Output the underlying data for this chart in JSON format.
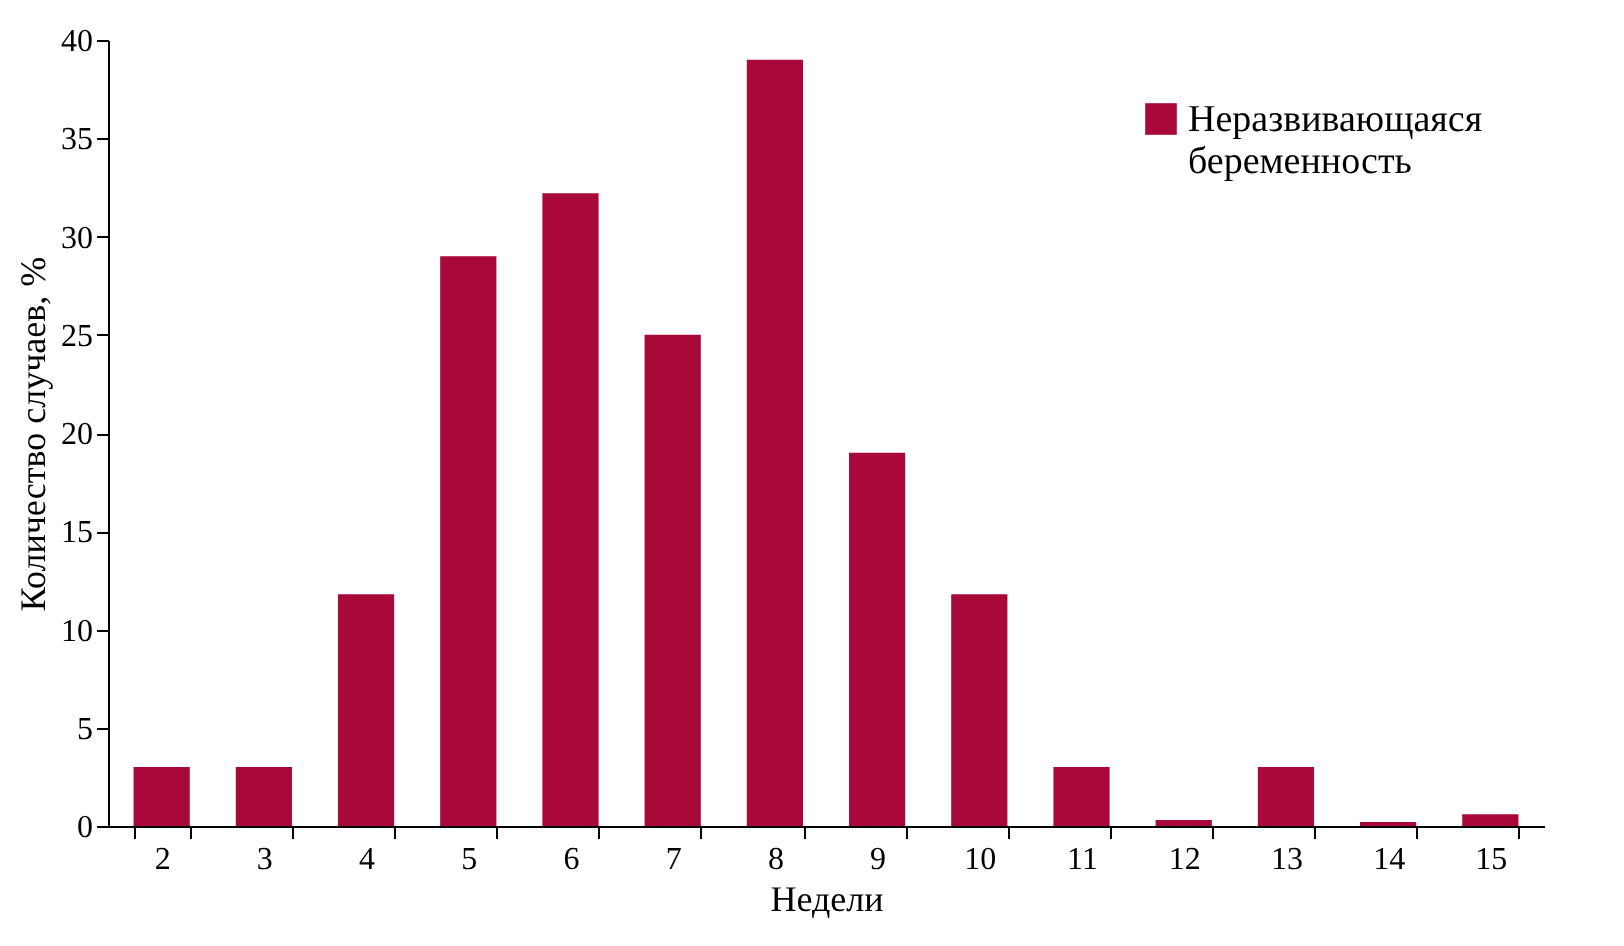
{
  "chart_data": {
    "type": "bar",
    "xlabel": "Недели",
    "ylabel": "Количество случаев, %",
    "categories": [
      "2",
      "3",
      "4",
      "5",
      "6",
      "7",
      "8",
      "9",
      "10",
      "11",
      "12",
      "13",
      "14",
      "15"
    ],
    "series": [
      {
        "name": "Неразвивающаяся беременность",
        "color": "#a8093a",
        "values": [
          3,
          3,
          11.8,
          29,
          32.2,
          25,
          39,
          19,
          11.8,
          3,
          0.3,
          3,
          0.2,
          0.6
        ]
      }
    ],
    "ylim": [
      0,
      40
    ],
    "yticks": [
      0,
      5,
      10,
      15,
      20,
      25,
      30,
      35,
      40
    ],
    "grid": false,
    "legend": "top right"
  }
}
